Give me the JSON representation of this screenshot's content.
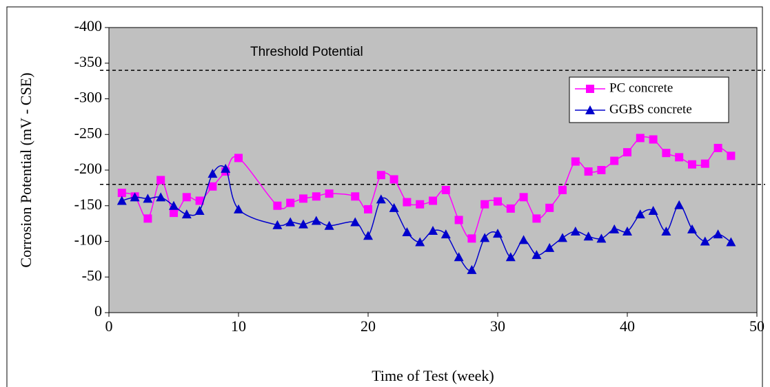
{
  "chart_data": {
    "type": "line",
    "x_label": "Time of Test (week)",
    "y_label": "Corrosion Potential (mV - CSE)",
    "annotation": "Threshold Potential",
    "threshold_lines": [
      -340,
      -180
    ],
    "x": [
      1,
      2,
      3,
      4,
      5,
      6,
      7,
      8,
      9,
      10,
      13,
      14,
      15,
      16,
      17,
      19,
      20,
      21,
      22,
      23,
      24,
      25,
      26,
      27,
      28,
      29,
      30,
      31,
      32,
      33,
      34,
      35,
      36,
      37,
      38,
      39,
      40,
      41,
      42,
      43,
      44,
      45,
      46,
      47,
      48
    ],
    "series": [
      {
        "name": "PC concrete",
        "color": "#ff00ff",
        "marker": "square",
        "values": [
          -168,
          -163,
          -132,
          -186,
          -140,
          -162,
          -157,
          -177,
          -198,
          -217,
          -150,
          -154,
          -160,
          -163,
          -167,
          -163,
          -145,
          -193,
          -187,
          -155,
          -152,
          -157,
          -172,
          -130,
          -104,
          -152,
          -156,
          -146,
          -162,
          -132,
          -147,
          -172,
          -212,
          -198,
          -200,
          -213,
          -225,
          -245,
          -243,
          -224,
          -218,
          -208,
          -209,
          -231,
          -220
        ]
      },
      {
        "name": "GGBS concrete",
        "color": "#0000cc",
        "marker": "triangle",
        "values": [
          -157,
          -162,
          -160,
          -162,
          -150,
          -138,
          -143,
          -195,
          -202,
          -145,
          -123,
          -127,
          -124,
          -129,
          -122,
          -127,
          -108,
          -159,
          -147,
          -113,
          -99,
          -115,
          -110,
          -78,
          -60,
          -105,
          -111,
          -78,
          -102,
          -81,
          -91,
          -105,
          -114,
          -107,
          -104,
          -117,
          -114,
          -138,
          -143,
          -114,
          -151,
          -117,
          -100,
          -110,
          -99
        ]
      }
    ],
    "xlim": [
      0,
      50
    ],
    "xticks": [
      0,
      10,
      20,
      30,
      40,
      50
    ],
    "ylim": [
      0,
      -400
    ],
    "yticks": [
      0,
      -50,
      -100,
      -150,
      -200,
      -250,
      -300,
      -350,
      -400
    ],
    "legend": "upper right",
    "plot_background": "#c0c0c0"
  }
}
